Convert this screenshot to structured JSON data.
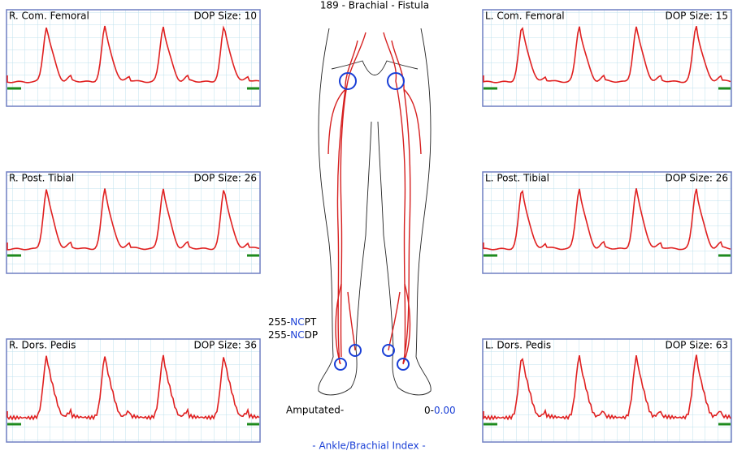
{
  "header": "189  - Brachial -  Fistula",
  "panels": [
    {
      "title": "R. Com. Femoral",
      "dop": "DOP Size: 10"
    },
    {
      "title": "R. Post. Tibial",
      "dop": "DOP Size: 26"
    },
    {
      "title": "R. Dors. Pedis",
      "dop": "DOP Size: 36"
    },
    {
      "title": "L. Com. Femoral",
      "dop": "DOP Size: 15"
    },
    {
      "title": "L. Post. Tibial",
      "dop": "DOP Size: 26"
    },
    {
      "title": "L. Dors. Pedis",
      "dop": "DOP Size: 63"
    }
  ],
  "center": {
    "pt": [
      "255-",
      "NC",
      "PT"
    ],
    "dp": [
      "255-",
      "NC",
      "DP"
    ],
    "amputated": "Amputated-",
    "abi": [
      "0-",
      "0.00"
    ],
    "footer": "- Ankle/Brachial Index -"
  }
}
